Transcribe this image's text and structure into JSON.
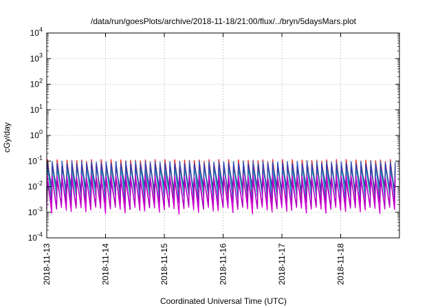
{
  "chart_data": {
    "type": "line",
    "title": "/data/run/goesPlots/archive/2018-11-18/21:00/flux/../bryn/5daysMars.plot",
    "xlabel": "Coordinated Universal Time (UTC)",
    "ylabel": "cGy/day",
    "y_scale": "log",
    "ylim": [
      0.0001,
      10000
    ],
    "y_ticks": [
      {
        "base": "10",
        "exp": "-4",
        "value": 0.0001
      },
      {
        "base": "10",
        "exp": "-3",
        "value": 0.001
      },
      {
        "base": "10",
        "exp": "-2",
        "value": 0.01
      },
      {
        "base": "10",
        "exp": "-1",
        "value": 0.1
      },
      {
        "base": "10",
        "exp": "0",
        "value": 1
      },
      {
        "base": "10",
        "exp": "1",
        "value": 10
      },
      {
        "base": "10",
        "exp": "2",
        "value": 100
      },
      {
        "base": "10",
        "exp": "3",
        "value": 1000
      },
      {
        "base": "10",
        "exp": "4",
        "value": 10000
      }
    ],
    "xlim": [
      "2018-11-13 00:00",
      "2018-11-18 23:59"
    ],
    "x_ticks": [
      "2018-11-13",
      "2018-11-14",
      "2018-11-15",
      "2018-11-16",
      "2018-11-17",
      "2018-11-18"
    ],
    "grid": true,
    "cycles_per_day": 12,
    "series": [
      {
        "color": "#e8322a",
        "peak": 0.1,
        "trough": 0.0045
      },
      {
        "color": "#2a62c8",
        "peak": 0.085,
        "trough": 0.0035
      },
      {
        "color": "#18b0b0",
        "peak": 0.05,
        "trough": 0.006
      },
      {
        "color": "#3a3aa8",
        "peak": 0.07,
        "trough": 0.008
      },
      {
        "color": "#d400d4",
        "peak": 0.025,
        "trough": 0.0012
      },
      {
        "color": "#b000c0",
        "peak": 0.018,
        "trough": 0.0018
      }
    ]
  }
}
